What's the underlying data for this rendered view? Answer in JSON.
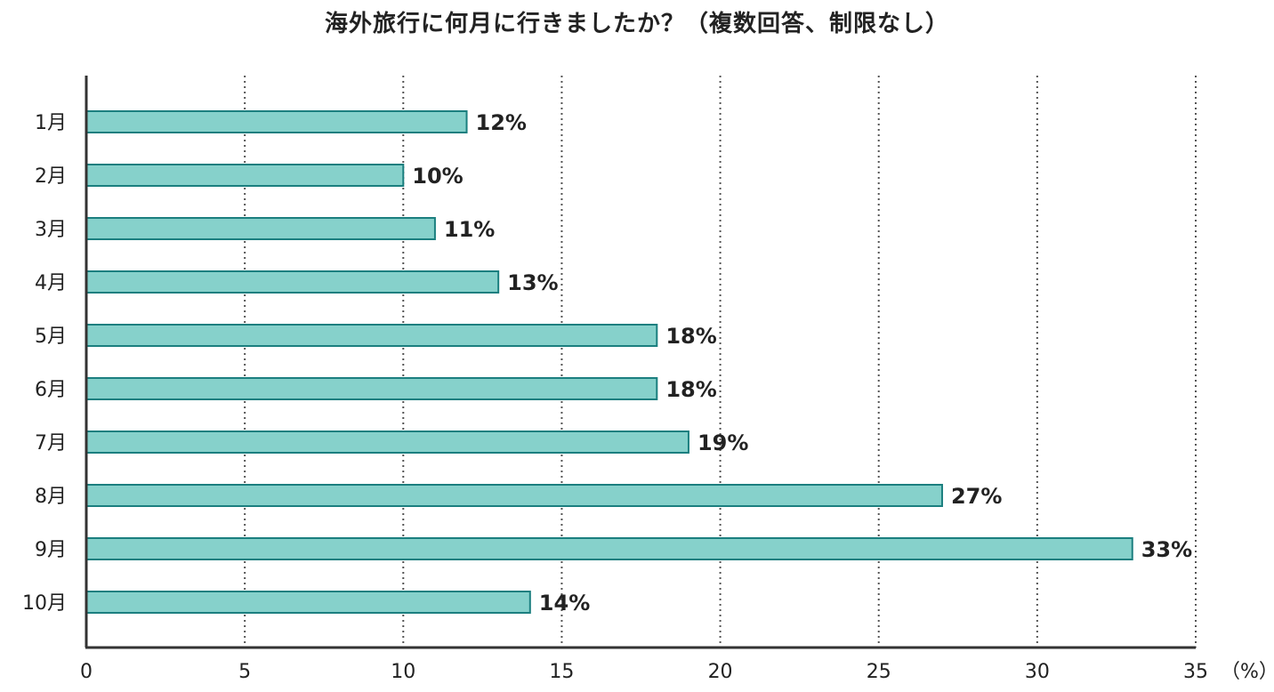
{
  "chart_data": {
    "type": "bar",
    "orientation": "horizontal",
    "title": "海外旅行に何月に行きましたか？（複数回答、制限なし）",
    "categories": [
      "1月",
      "2月",
      "3月",
      "4月",
      "5月",
      "6月",
      "7月",
      "8月",
      "9月",
      "10月"
    ],
    "values": [
      12,
      10,
      11,
      13,
      18,
      18,
      19,
      27,
      33,
      14
    ],
    "data_labels": [
      "12%",
      "10%",
      "11%",
      "13%",
      "18%",
      "18%",
      "19%",
      "27%",
      "33%",
      "14%"
    ],
    "xlim": [
      0,
      35
    ],
    "xticks": [
      0,
      5,
      10,
      15,
      20,
      25,
      30,
      35
    ],
    "unit_label": "（%）",
    "grid": "vertical dotted",
    "bar_fill": "#86d1cb",
    "bar_stroke": "#1b7f7f"
  }
}
